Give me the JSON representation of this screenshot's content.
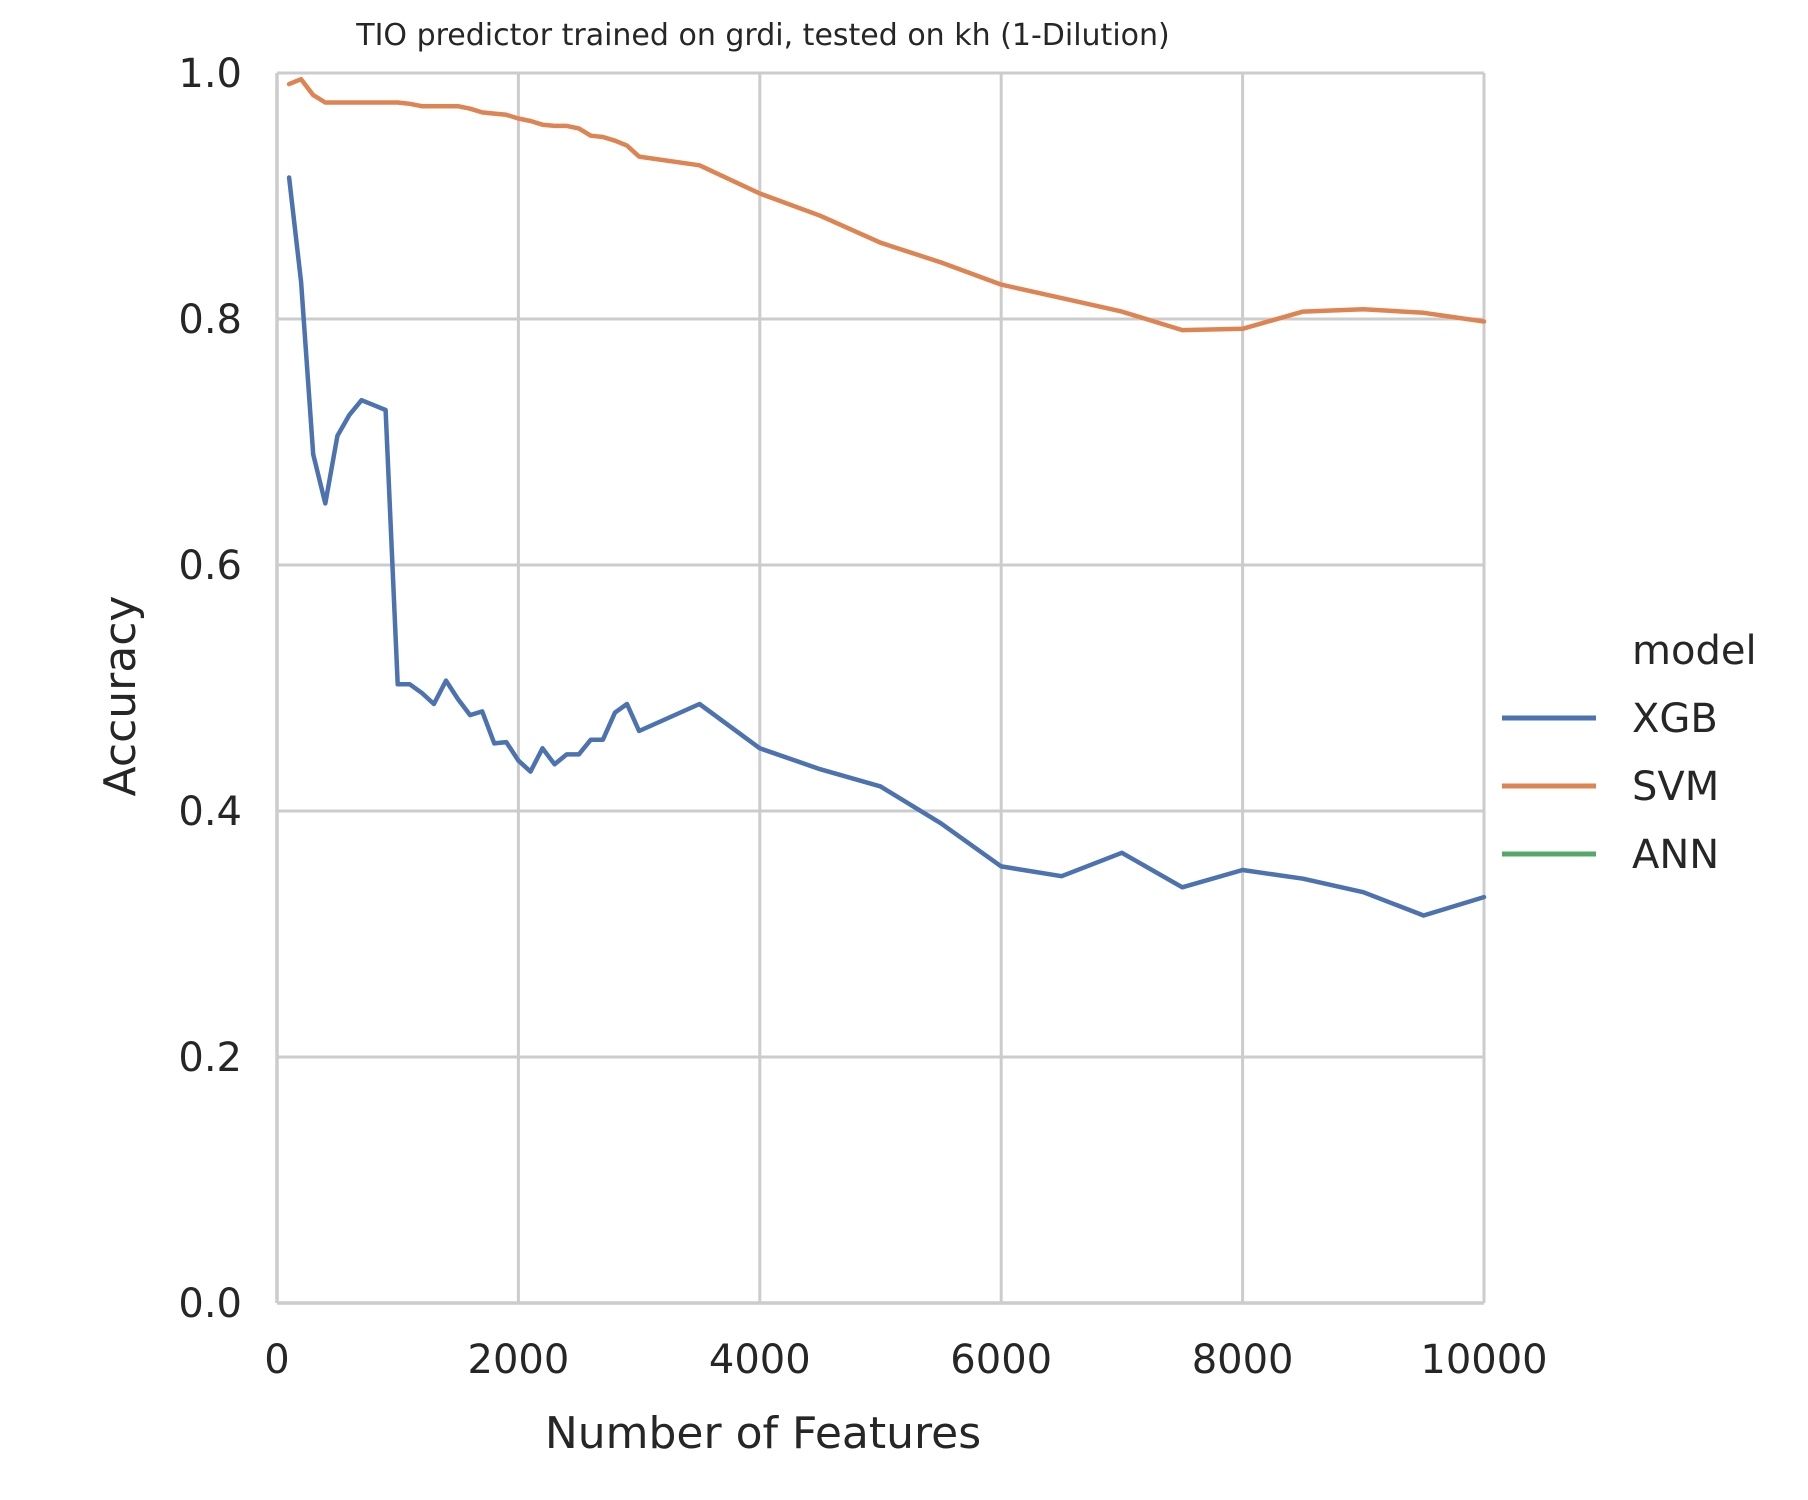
{
  "chart_data": {
    "type": "line",
    "title": "TIO predictor trained on grdi, tested on kh (1-Dilution)",
    "xlabel": "Number of Features",
    "ylabel": "Accuracy",
    "xlim": [
      0,
      10000
    ],
    "ylim": [
      0.0,
      1.0
    ],
    "xticks": [
      0,
      2000,
      4000,
      6000,
      8000,
      10000
    ],
    "xtick_labels": [
      "0",
      "2000",
      "4000",
      "6000",
      "8000",
      "10000"
    ],
    "yticks": [
      0.0,
      0.2,
      0.4,
      0.6,
      0.8,
      1.0
    ],
    "ytick_labels": [
      "0.0",
      "0.2",
      "0.4",
      "0.6",
      "0.8",
      "1.0"
    ],
    "grid": true,
    "legend": {
      "title": "model",
      "placement": "right"
    },
    "series": [
      {
        "name": "XGB",
        "color": "#4c72b0",
        "x": [
          100,
          200,
          300,
          400,
          500,
          600,
          700,
          800,
          900,
          1000,
          1100,
          1200,
          1300,
          1400,
          1500,
          1600,
          1700,
          1800,
          1900,
          2000,
          2100,
          2200,
          2300,
          2400,
          2500,
          2600,
          2700,
          2800,
          2900,
          3000,
          3500,
          4000,
          4500,
          5000,
          5500,
          6000,
          6500,
          7000,
          7500,
          8000,
          8500,
          9000,
          9500,
          10000
        ],
        "y": [
          0.915,
          0.83,
          0.69,
          0.65,
          0.705,
          0.722,
          0.734,
          0.73,
          0.726,
          0.503,
          0.503,
          0.496,
          0.487,
          0.506,
          0.491,
          0.478,
          0.481,
          0.455,
          0.456,
          0.441,
          0.432,
          0.451,
          0.438,
          0.446,
          0.446,
          0.458,
          0.458,
          0.48,
          0.487,
          0.465,
          0.487,
          0.451,
          0.434,
          0.42,
          0.39,
          0.355,
          0.347,
          0.366,
          0.338,
          0.352,
          0.345,
          0.334,
          0.315,
          0.33
        ]
      },
      {
        "name": "SVM",
        "color": "#dd8452",
        "x": [
          100,
          200,
          300,
          400,
          500,
          600,
          700,
          800,
          900,
          1000,
          1100,
          1200,
          1300,
          1400,
          1500,
          1600,
          1700,
          1800,
          1900,
          2000,
          2100,
          2200,
          2300,
          2400,
          2500,
          2600,
          2700,
          2800,
          2900,
          3000,
          3500,
          4000,
          4500,
          5000,
          5500,
          6000,
          6500,
          7000,
          7500,
          8000,
          8500,
          9000,
          9500,
          10000
        ],
        "y": [
          0.991,
          0.995,
          0.982,
          0.976,
          0.976,
          0.976,
          0.976,
          0.976,
          0.976,
          0.976,
          0.975,
          0.973,
          0.973,
          0.973,
          0.973,
          0.971,
          0.968,
          0.967,
          0.966,
          0.963,
          0.961,
          0.958,
          0.957,
          0.957,
          0.955,
          0.949,
          0.948,
          0.945,
          0.941,
          0.932,
          0.925,
          0.902,
          0.884,
          0.862,
          0.846,
          0.828,
          0.817,
          0.806,
          0.791,
          0.792,
          0.806,
          0.808,
          0.805,
          0.798
        ]
      },
      {
        "name": "ANN",
        "color": "#55a868",
        "x": [],
        "y": []
      }
    ]
  }
}
